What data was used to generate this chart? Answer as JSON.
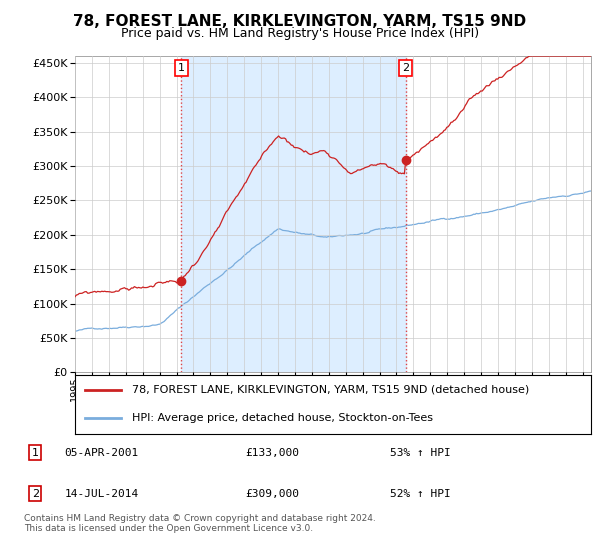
{
  "title": "78, FOREST LANE, KIRKLEVINGTON, YARM, TS15 9ND",
  "subtitle": "Price paid vs. HM Land Registry's House Price Index (HPI)",
  "title_fontsize": 11,
  "subtitle_fontsize": 9,
  "ylim": [
    0,
    460000
  ],
  "yticks": [
    0,
    50000,
    100000,
    150000,
    200000,
    250000,
    300000,
    350000,
    400000,
    450000
  ],
  "xstart_year": 1995,
  "xend_year": 2025,
  "sale1_year": 2001.29,
  "sale1_price": 133000,
  "sale2_year": 2014.54,
  "sale2_price": 309000,
  "line1_color": "#cc2222",
  "line2_color": "#7aaddd",
  "shade_color": "#ddeeff",
  "vline_color": "#dd4444",
  "legend_line1": "78, FOREST LANE, KIRKLEVINGTON, YARM, TS15 9ND (detached house)",
  "legend_line2": "HPI: Average price, detached house, Stockton-on-Tees",
  "footer": "Contains HM Land Registry data © Crown copyright and database right 2024.\nThis data is licensed under the Open Government Licence v3.0.",
  "background_color": "#ffffff",
  "grid_color": "#cccccc"
}
